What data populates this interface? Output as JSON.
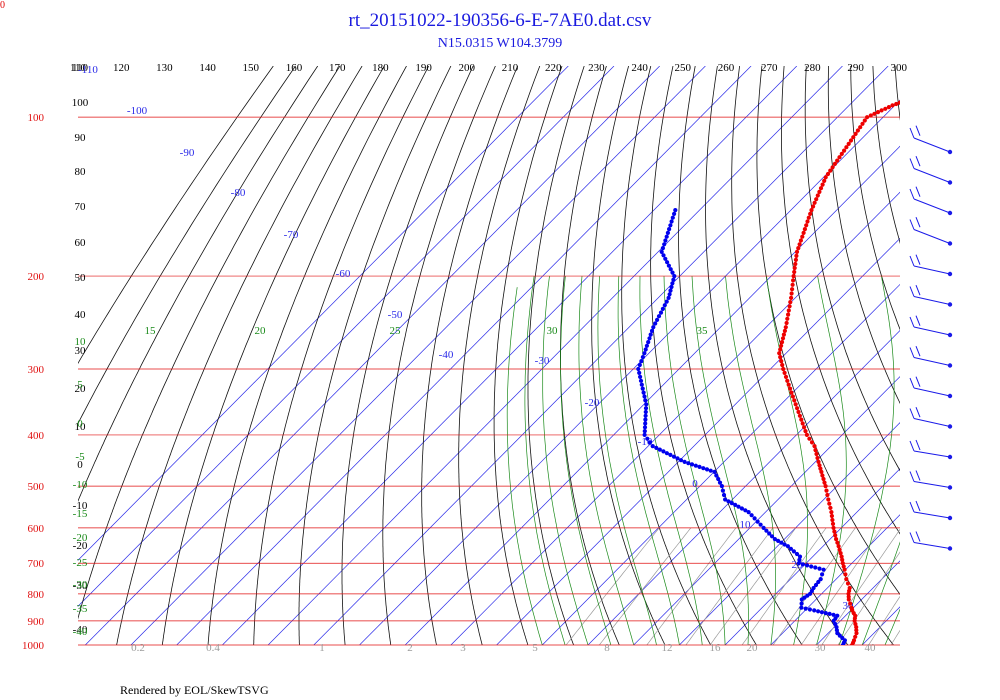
{
  "title": "rt_20151022-190356-6-E-7AE0.dat.csv",
  "subtitle": "N15.0315 W104.3799",
  "footer": "Rendered by EOL/SkewTSVG",
  "corner_label": "0",
  "colors": {
    "title": "#1a1adf",
    "isobar": "#e01010",
    "isotherm": "#2a2ae8",
    "dry_adiabat": "#111111",
    "moist_adiabat": "#1a8a1a",
    "mixing_ratio": "#9a9a9a",
    "temperature_trace": "#ee0000",
    "dewpoint_trace": "#0000ee",
    "wind_barb": "#1a1ae8"
  },
  "chart_data": {
    "type": "scatter",
    "series": [],
    "pressure_axis": {
      "labels": [
        "100",
        "200",
        "300",
        "400",
        "500",
        "600",
        "700",
        "800",
        "900",
        "1000"
      ],
      "values": [
        100,
        200,
        300,
        400,
        500,
        600,
        700,
        800,
        900,
        1000
      ],
      "ylim": [
        80,
        1000
      ]
    },
    "theta_labels": [
      "110",
      "120",
      "130",
      "140",
      "150",
      "160",
      "170",
      "180",
      "190",
      "200",
      "210",
      "220",
      "230",
      "240",
      "250",
      "260",
      "270",
      "280",
      "290",
      "300"
    ],
    "dry_adiabat_side_labels": [
      "110",
      "100",
      "90",
      "80",
      "70",
      "60",
      "50",
      "40",
      "30",
      "20",
      "10",
      "0",
      "-10",
      "-20",
      "-30",
      "-40"
    ],
    "isotherm_labels": [
      "-110",
      "-100",
      "-90",
      "-80",
      "-70",
      "-60",
      "-50",
      "-40",
      "-30",
      "-20",
      "-10",
      "0",
      "10",
      "20",
      "30"
    ],
    "moist_adiabat_labels": [
      "15",
      "20",
      "25",
      "30",
      "35",
      "10",
      "5",
      "0",
      "-5",
      "-10",
      "-15",
      "-20",
      "-25",
      "-30",
      "-35",
      "-40"
    ],
    "mixing_ratio_labels": [
      "0.2",
      "0.4",
      "1",
      "2",
      "3",
      "5",
      "8",
      "12",
      "16",
      "20",
      "30",
      "40"
    ],
    "temperature": {
      "pressure": [
        1000,
        980,
        950,
        925,
        900,
        880,
        860,
        850,
        820,
        800,
        780,
        750,
        720,
        700,
        680,
        650,
        630,
        600,
        560,
        530,
        500,
        470,
        450,
        420,
        400,
        350,
        300,
        280,
        250,
        220,
        200,
        180,
        150,
        130,
        100,
        95,
        90,
        85
      ],
      "values": [
        27.8,
        27.2,
        26.2,
        24.8,
        23.1,
        22.1,
        20.3,
        19.6,
        17.2,
        15.9,
        14.9,
        12.2,
        9.8,
        8.0,
        6.3,
        3.4,
        1.3,
        -1.7,
        -5.6,
        -9.0,
        -12.5,
        -16.5,
        -19.3,
        -23.6,
        -27.7,
        -36.8,
        -47.2,
        -51.5,
        -55.7,
        -60.9,
        -65.1,
        -69.6,
        -75.5,
        -79.5,
        -83.5,
        -80.5,
        -76.0,
        -64.0
      ]
    },
    "dewpoint": {
      "pressure": [
        1000,
        980,
        950,
        925,
        900,
        880,
        860,
        850,
        820,
        800,
        780,
        750,
        720,
        700,
        680,
        650,
        630,
        600,
        560,
        530,
        500,
        470,
        450,
        420,
        400,
        350,
        300,
        280,
        250,
        220,
        200,
        180,
        150
      ],
      "values": [
        25.8,
        25.2,
        22.0,
        20.5,
        18.5,
        18.2,
        12.0,
        8.6,
        6.9,
        7.5,
        7.0,
        6.6,
        5.2,
        -1.6,
        -2.8,
        -7.7,
        -12.1,
        -17.0,
        -23.7,
        -31.6,
        -35.2,
        -39.9,
        -48.6,
        -59.0,
        -63.2,
        -69.5,
        -78.9,
        -81.0,
        -84.7,
        -87.7,
        -91.2,
        -99.2,
        -105.3
      ]
    },
    "wind_pressures": [
      90,
      120,
      150,
      180,
      230,
      280,
      330,
      390,
      450,
      520,
      600,
      700,
      820,
      950
    ],
    "x_grid": "skew-T",
    "log_pressure": true
  }
}
